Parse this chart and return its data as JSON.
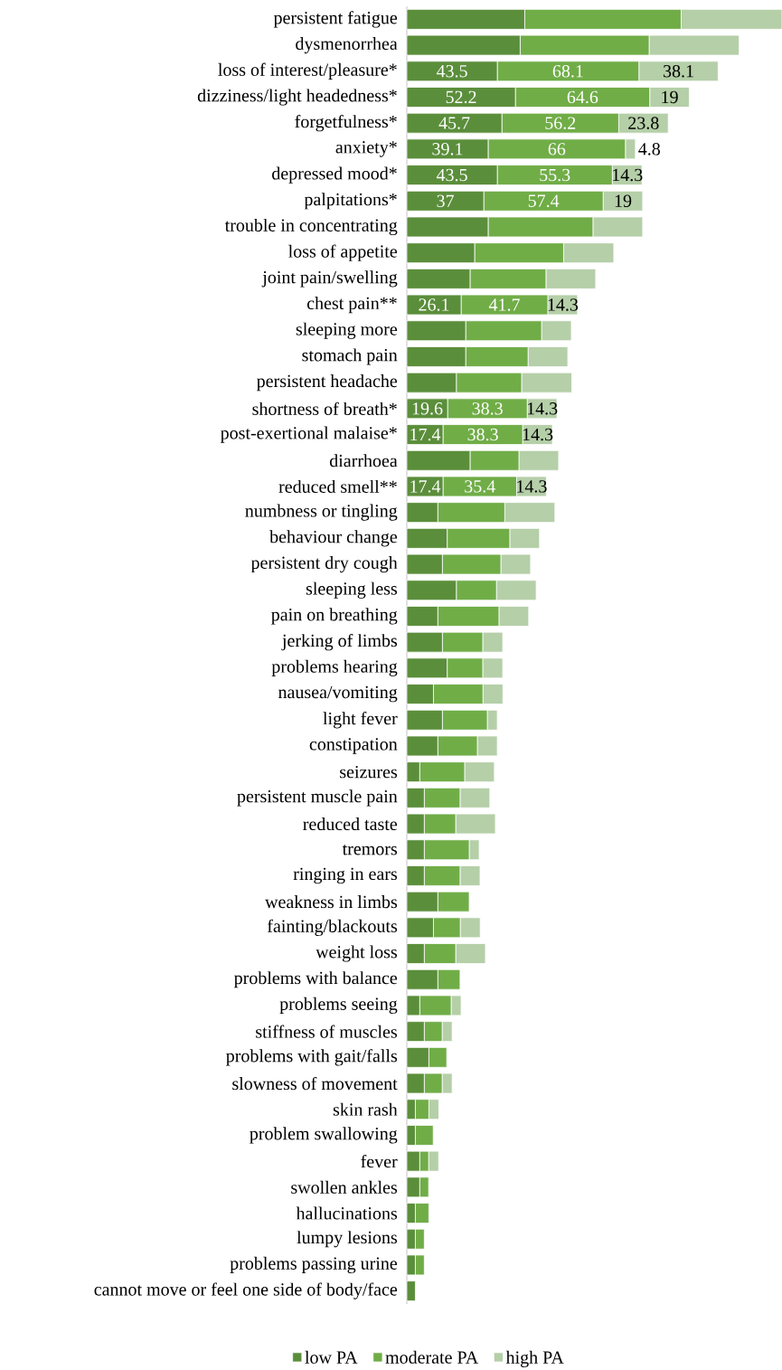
{
  "chart_data": {
    "type": "bar",
    "orientation": "horizontal",
    "stacked": true,
    "legend": "bottom",
    "categories": [
      "persistent fatigue",
      "dysmenorrhea",
      "loss of interest/pleasure*",
      "dizziness/light headedness*",
      "forgetfulness*",
      "anxiety*",
      "depressed mood*",
      "palpitations*",
      "trouble in concentrating",
      "loss of appetite",
      "joint pain/swelling",
      "chest pain**",
      "sleeping more",
      "stomach pain",
      "persistent headache",
      "shortness of breath*",
      "post-exertional malaise*",
      "diarrhoea",
      "reduced smell**",
      "numbness or tingling",
      "behaviour change",
      "persistent dry cough",
      "sleeping less",
      "pain on breathing",
      "jerking of limbs",
      "problems hearing",
      "nausea/vomiting",
      "light fever",
      "constipation",
      "seizures",
      "persistent muscle pain",
      "reduced taste",
      "tremors",
      "ringing in ears",
      "weakness in limbs",
      "fainting/blackouts",
      "weight loss",
      "problems with balance",
      "problems seeing",
      "stiffness of muscles",
      "problems with gait/falls",
      "slowness of movement",
      "skin rash",
      "problem swallowing",
      "fever",
      "swollen ankles",
      "hallucinations",
      "lumpy lesions",
      "problems passing urine",
      "cannot move or feel one side of body/face"
    ],
    "series": [
      {
        "name": "low PA",
        "color": "#5b8e3b",
        "values": [
          56.7,
          54.5,
          43.5,
          52.2,
          45.7,
          39.1,
          43.5,
          37,
          39.1,
          32.6,
          30.4,
          26.1,
          28.3,
          28.3,
          23.8,
          19.6,
          17.4,
          30.4,
          17.4,
          14.9,
          19.4,
          17.1,
          23.8,
          14.9,
          17.1,
          19.4,
          12.8,
          17.1,
          14.9,
          6.2,
          8.4,
          8.4,
          8.4,
          8.4,
          14.9,
          12.8,
          8.4,
          14.9,
          6.2,
          8.4,
          10.6,
          8.4,
          4.1,
          4.1,
          6.2,
          6.2,
          4.1,
          4.1,
          4.1,
          4.1
        ],
        "value_labels": [
          null,
          null,
          "43.5",
          "52.2",
          "45.7",
          "39.1",
          "43.5",
          "37",
          null,
          null,
          null,
          "26.1",
          null,
          null,
          null,
          "19.6",
          "17.4",
          null,
          "17.4",
          null,
          null,
          null,
          null,
          null,
          null,
          null,
          null,
          null,
          null,
          null,
          null,
          null,
          null,
          null,
          null,
          null,
          null,
          null,
          null,
          null,
          null,
          null,
          null,
          null,
          null,
          null,
          null,
          null,
          null,
          null
        ]
      },
      {
        "name": "moderate PA",
        "color": "#70ad47",
        "values": [
          75.2,
          62.0,
          68.1,
          64.6,
          56.2,
          66,
          55.3,
          57.4,
          50.4,
          42.8,
          36.5,
          41.7,
          36.5,
          30.0,
          31.4,
          38.3,
          38.3,
          23.5,
          35.4,
          32.2,
          30.1,
          28.1,
          19.3,
          29.4,
          19.4,
          17.1,
          23.8,
          21.6,
          19.0,
          21.6,
          17.2,
          15.1,
          21.6,
          17.2,
          15.1,
          12.9,
          15.1,
          10.7,
          15.1,
          8.6,
          8.6,
          8.6,
          6.5,
          8.6,
          4.3,
          4.3,
          6.5,
          4.3,
          4.3,
          0
        ],
        "value_labels": [
          null,
          null,
          "68.1",
          "64.6",
          "56.2",
          "66",
          "55.3",
          "57.4",
          null,
          null,
          null,
          "41.7",
          null,
          null,
          null,
          "38.3",
          "38.3",
          null,
          "35.4",
          null,
          null,
          null,
          null,
          null,
          null,
          null,
          null,
          null,
          null,
          null,
          null,
          null,
          null,
          null,
          null,
          null,
          null,
          null,
          null,
          null,
          null,
          null,
          null,
          null,
          null,
          null,
          null,
          null,
          null,
          null
        ]
      },
      {
        "name": "high PA",
        "color": "#b5cfa8",
        "values": [
          48.5,
          43.3,
          38.1,
          19,
          23.8,
          4.8,
          14.3,
          19,
          23.9,
          24.1,
          23.9,
          14.3,
          14.3,
          19.1,
          24.1,
          14.3,
          14.3,
          19.1,
          14.3,
          24.1,
          14.3,
          14.3,
          19.1,
          14.3,
          9.6,
          9.6,
          9.6,
          4.8,
          9.6,
          14.3,
          14.3,
          19.1,
          4.8,
          9.6,
          0,
          9.6,
          14.3,
          0,
          4.8,
          4.8,
          0,
          4.8,
          4.8,
          0,
          4.8,
          0,
          0,
          0,
          0,
          0
        ],
        "value_labels": [
          null,
          null,
          "38.1",
          "19",
          "23.8",
          "4.8",
          "14.3",
          "19",
          null,
          null,
          null,
          "14.3",
          null,
          null,
          null,
          "14.3",
          "14.3",
          null,
          "14.3",
          null,
          null,
          null,
          null,
          null,
          null,
          null,
          null,
          null,
          null,
          null,
          null,
          null,
          null,
          null,
          null,
          null,
          null,
          null,
          null,
          null,
          null,
          null,
          null,
          null,
          null,
          null,
          null,
          null,
          null,
          null
        ]
      }
    ]
  }
}
